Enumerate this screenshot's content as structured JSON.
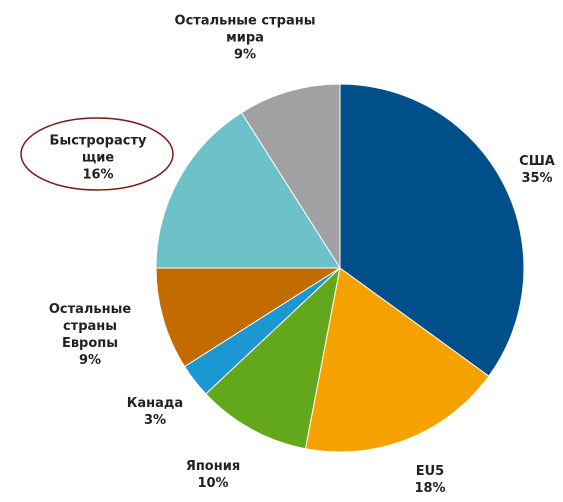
{
  "chart_data": {
    "type": "pie",
    "categories": [
      "США",
      "EU5",
      "Япония",
      "Канада",
      "Остальные страны Европы",
      "Быстрорастущие",
      "Остальные страны мира"
    ],
    "values": [
      35,
      18,
      10,
      3,
      9,
      16,
      9
    ],
    "value_labels": [
      "35%",
      "18%",
      "10%",
      "3%",
      "9%",
      "16%",
      "9%"
    ],
    "colors": [
      "#004f8a",
      "#f5a100",
      "#63a81b",
      "#1b97d2",
      "#c16b00",
      "#6dc1c9",
      "#a1a1a1"
    ]
  }
}
